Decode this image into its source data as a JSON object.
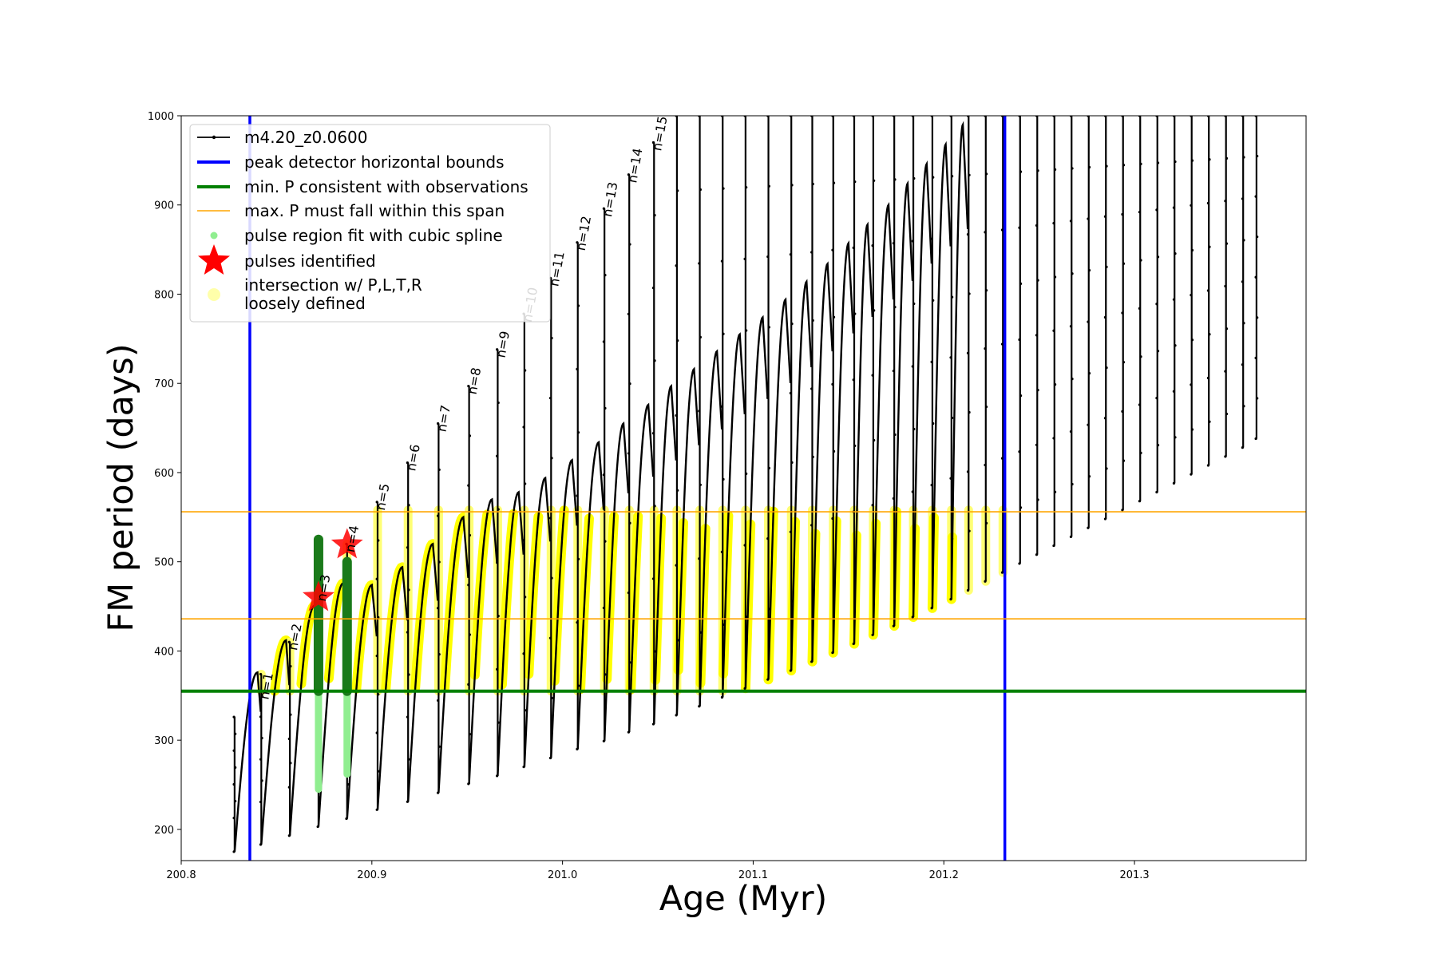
{
  "chart_data": {
    "type": "line",
    "xlabel": "Age (Myr)",
    "ylabel": "FM period (days)",
    "xlim": [
      200.8,
      201.39
    ],
    "ylim": [
      165,
      1000
    ],
    "xticks": [
      "200.8",
      "200.9",
      "201.0",
      "201.1",
      "201.2",
      "201.3"
    ],
    "yticks": [
      "200",
      "300",
      "400",
      "500",
      "600",
      "700",
      "800",
      "900",
      "1000"
    ],
    "grid": false,
    "legend_position": "top-left",
    "legend": [
      {
        "label": "m4.20_z0.0600",
        "color": "#000000",
        "kind": "line-dot"
      },
      {
        "label": "peak detector horizontal bounds",
        "color": "#0000ff",
        "kind": "line"
      },
      {
        "label": "min. P consistent with observations",
        "color": "#008000",
        "kind": "line"
      },
      {
        "label": "max. P must fall within this span",
        "color": "#ffa500",
        "kind": "thin-line"
      },
      {
        "label": "pulse region fit with cubic spline",
        "color": "#90ee90",
        "kind": "dot"
      },
      {
        "label": "pulses identified",
        "color": "#ff0000",
        "kind": "star"
      },
      {
        "label": "intersection w/ P,L,T,R\nloosely defined",
        "color": "#ffffaa",
        "kind": "circle"
      }
    ],
    "reference_lines": {
      "vertical_blue": [
        200.836,
        201.232
      ],
      "horizontal_green": 355,
      "horizontal_orange": [
        436,
        556
      ]
    },
    "pulses": [
      {
        "age": 200.828,
        "min": 175,
        "peak": 326
      },
      {
        "age": 200.842,
        "min": 183,
        "peak": 374
      },
      {
        "age": 200.857,
        "min": 193,
        "peak": 410
      },
      {
        "age": 200.872,
        "min": 203,
        "peak": 465
      },
      {
        "age": 200.887,
        "min": 212,
        "peak": 520
      },
      {
        "age": 200.903,
        "min": 222,
        "peak": 567
      },
      {
        "age": 200.919,
        "min": 231,
        "peak": 611
      },
      {
        "age": 200.935,
        "min": 241,
        "peak": 655
      },
      {
        "age": 200.951,
        "min": 251,
        "peak": 697
      },
      {
        "age": 200.966,
        "min": 260,
        "peak": 738
      },
      {
        "age": 200.98,
        "min": 270,
        "peak": 778
      },
      {
        "age": 200.994,
        "min": 280,
        "peak": 818
      },
      {
        "age": 201.008,
        "min": 290,
        "peak": 858
      },
      {
        "age": 201.022,
        "min": 299,
        "peak": 896
      },
      {
        "age": 201.035,
        "min": 309,
        "peak": 934
      },
      {
        "age": 201.048,
        "min": 318,
        "peak": 970
      },
      {
        "age": 201.06,
        "min": 328,
        "peak": 1000
      },
      {
        "age": 201.072,
        "min": 338,
        "peak": 1000
      },
      {
        "age": 201.084,
        "min": 348,
        "peak": 1000
      },
      {
        "age": 201.096,
        "min": 358,
        "peak": 1000
      },
      {
        "age": 201.108,
        "min": 368,
        "peak": 1000
      },
      {
        "age": 201.12,
        "min": 378,
        "peak": 1000
      },
      {
        "age": 201.131,
        "min": 388,
        "peak": 1000
      },
      {
        "age": 201.142,
        "min": 398,
        "peak": 1000
      },
      {
        "age": 201.153,
        "min": 408,
        "peak": 1000
      },
      {
        "age": 201.163,
        "min": 418,
        "peak": 1000
      },
      {
        "age": 201.174,
        "min": 428,
        "peak": 1000
      },
      {
        "age": 201.184,
        "min": 438,
        "peak": 1000
      },
      {
        "age": 201.194,
        "min": 448,
        "peak": 1000
      },
      {
        "age": 201.204,
        "min": 458,
        "peak": 1000
      },
      {
        "age": 201.213,
        "min": 468,
        "peak": 1000
      },
      {
        "age": 201.222,
        "min": 478,
        "peak": 1000
      },
      {
        "age": 201.231,
        "min": 488,
        "peak": 1000
      },
      {
        "age": 201.24,
        "min": 498,
        "peak": 1000
      },
      {
        "age": 201.249,
        "min": 508,
        "peak": 1000
      },
      {
        "age": 201.258,
        "min": 518,
        "peak": 1000
      },
      {
        "age": 201.267,
        "min": 528,
        "peak": 1000
      },
      {
        "age": 201.276,
        "min": 538,
        "peak": 1000
      },
      {
        "age": 201.285,
        "min": 548,
        "peak": 1000
      },
      {
        "age": 201.294,
        "min": 558,
        "peak": 1000
      },
      {
        "age": 201.303,
        "min": 568,
        "peak": 1000
      },
      {
        "age": 201.312,
        "min": 578,
        "peak": 1000
      },
      {
        "age": 201.321,
        "min": 588,
        "peak": 1000
      },
      {
        "age": 201.33,
        "min": 598,
        "peak": 1000
      },
      {
        "age": 201.339,
        "min": 608,
        "peak": 1000
      },
      {
        "age": 201.348,
        "min": 618,
        "peak": 1000
      },
      {
        "age": 201.357,
        "min": 628,
        "peak": 1000
      },
      {
        "age": 201.364,
        "min": 638,
        "peak": 1000
      }
    ],
    "interpulse_peaks": [
      {
        "x": 200.84,
        "y": 376
      },
      {
        "x": 200.855,
        "y": 412
      },
      {
        "x": 200.87,
        "y": 451
      },
      {
        "x": 200.885,
        "y": 476
      },
      {
        "x": 200.9,
        "y": 474
      },
      {
        "x": 200.916,
        "y": 494
      },
      {
        "x": 200.932,
        "y": 520
      },
      {
        "x": 200.948,
        "y": 550
      },
      {
        "x": 200.963,
        "y": 570
      },
      {
        "x": 200.977,
        "y": 578
      },
      {
        "x": 200.991,
        "y": 594
      },
      {
        "x": 201.005,
        "y": 614
      },
      {
        "x": 201.019,
        "y": 634
      },
      {
        "x": 201.032,
        "y": 655
      },
      {
        "x": 201.045,
        "y": 676
      },
      {
        "x": 201.057,
        "y": 697
      },
      {
        "x": 201.069,
        "y": 716
      },
      {
        "x": 201.081,
        "y": 736
      },
      {
        "x": 201.093,
        "y": 755
      },
      {
        "x": 201.105,
        "y": 774
      },
      {
        "x": 201.117,
        "y": 794
      },
      {
        "x": 201.128,
        "y": 814
      },
      {
        "x": 201.139,
        "y": 834
      },
      {
        "x": 201.15,
        "y": 857
      },
      {
        "x": 201.16,
        "y": 878
      },
      {
        "x": 201.171,
        "y": 900
      },
      {
        "x": 201.181,
        "y": 924
      },
      {
        "x": 201.191,
        "y": 946
      },
      {
        "x": 201.201,
        "y": 968
      },
      {
        "x": 201.21,
        "y": 990
      }
    ],
    "pulse_labels": [
      {
        "text": "n=1",
        "x": 200.844,
        "y": 345
      },
      {
        "text": "n=2",
        "x": 200.859,
        "y": 400
      },
      {
        "text": "n=3",
        "x": 200.874,
        "y": 455
      },
      {
        "text": "n=4",
        "x": 200.889,
        "y": 510
      },
      {
        "text": "n=5",
        "x": 200.905,
        "y": 557
      },
      {
        "text": "n=6",
        "x": 200.921,
        "y": 601
      },
      {
        "text": "n=7",
        "x": 200.937,
        "y": 645
      },
      {
        "text": "n=8",
        "x": 200.953,
        "y": 687
      },
      {
        "text": "n=9",
        "x": 200.968,
        "y": 728
      },
      {
        "text": "n=10",
        "x": 200.982,
        "y": 768
      },
      {
        "text": "n=11",
        "x": 200.996,
        "y": 808
      },
      {
        "text": "n=12",
        "x": 201.01,
        "y": 848
      },
      {
        "text": "n=13",
        "x": 201.024,
        "y": 886
      },
      {
        "text": "n=14",
        "x": 201.037,
        "y": 924
      },
      {
        "text": "n=15",
        "x": 201.05,
        "y": 960
      }
    ],
    "spline_fits": [
      {
        "age": 200.872,
        "min": 245,
        "max": 430
      },
      {
        "age": 200.887,
        "min": 262,
        "max": 460
      }
    ],
    "pulses_identified": [
      {
        "x": 200.872,
        "y": 460
      },
      {
        "x": 200.887,
        "y": 519
      }
    ],
    "green_pulse_fits": [
      {
        "age": 200.872,
        "min": 355,
        "max": 525
      },
      {
        "age": 200.887,
        "min": 355,
        "max": 500
      }
    ],
    "yellow_band": {
      "min": 355,
      "max": 558,
      "x_start": 200.836,
      "x_end": 201.232
    }
  }
}
